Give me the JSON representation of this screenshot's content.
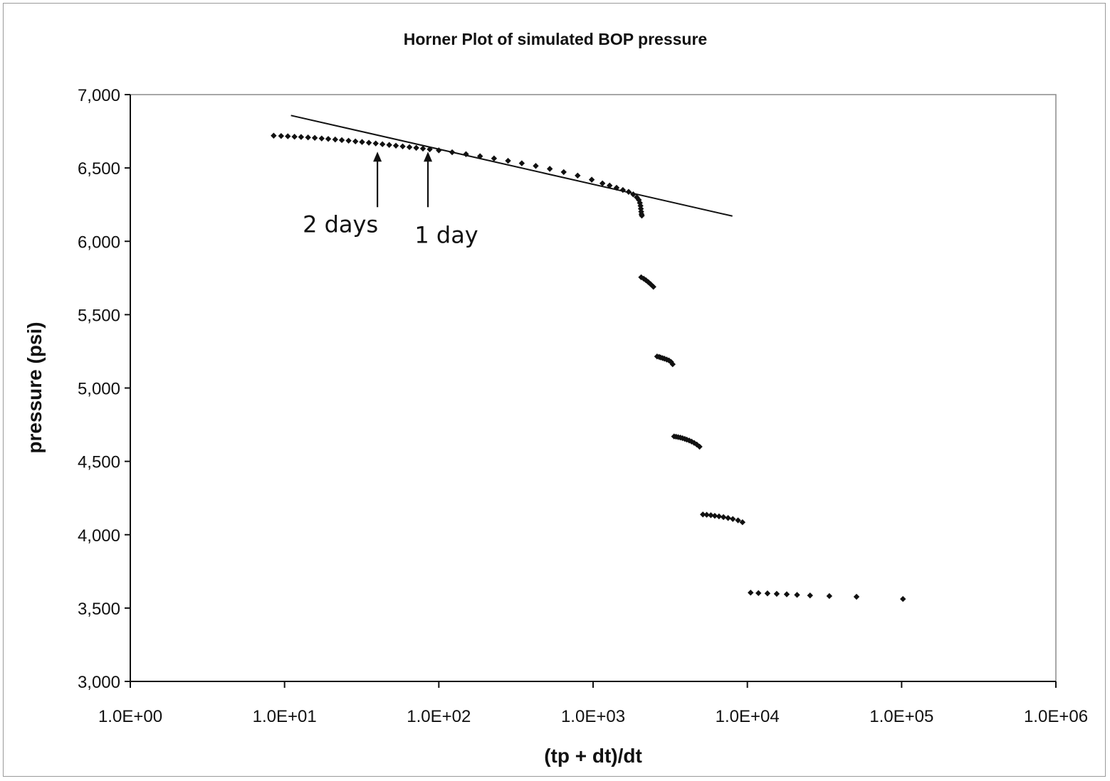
{
  "chart_data": {
    "type": "scatter",
    "title": "Horner Plot of simulated BOP pressure",
    "xlabel": "(tp + dt)/dt",
    "ylabel": "pressure (psi)",
    "xscale": "log",
    "xlim": [
      1,
      1000000
    ],
    "ylim": [
      3000,
      7000
    ],
    "grid": false,
    "legend": "none",
    "xticks": [
      "1.0E+00",
      "1.0E+01",
      "1.0E+02",
      "1.0E+03",
      "1.0E+04",
      "1.0E+05",
      "1.0E+06"
    ],
    "yticks": [
      "3,000",
      "3,500",
      "4,000",
      "4,500",
      "5,000",
      "5,500",
      "6,000",
      "6,500",
      "7,000"
    ],
    "marker_color": "#111111",
    "series": [
      {
        "marker": "diamond",
        "x": [
          8.5,
          9.5,
          10.5,
          11.6,
          12.8,
          14.2,
          15.7,
          17.4,
          19.2,
          21.3,
          23.5,
          26.0,
          28.8,
          31.8,
          35.2,
          39.0,
          43.1,
          47.7,
          52.7,
          58.3,
          64.5,
          71.4,
          78.9,
          87.3,
          100,
          122,
          150,
          185,
          228,
          281,
          345,
          425,
          524,
          645,
          794,
          980,
          1150,
          1280,
          1420,
          1560,
          1700,
          1820,
          1920,
          1980,
          2010,
          2030,
          2040,
          2050,
          2060,
          2070,
          2050,
          2130,
          2200,
          2280,
          2360,
          2460,
          2600,
          2680,
          2740,
          2820,
          2900,
          3000,
          3100,
          3200,
          3280,
          3350,
          3450,
          3560,
          3680,
          3800,
          3930,
          4050,
          4200,
          4350,
          4520,
          4700,
          4900,
          5150,
          5450,
          5800,
          6150,
          6550,
          7000,
          7500,
          8050,
          8700,
          9300,
          10500,
          11800,
          13500,
          15500,
          18000,
          21000,
          25500,
          34000,
          51000,
          102000
        ],
        "y": [
          6720,
          6718,
          6716,
          6713,
          6711,
          6708,
          6705,
          6701,
          6698,
          6694,
          6690,
          6686,
          6681,
          6677,
          6672,
          6667,
          6662,
          6657,
          6652,
          6647,
          6642,
          6637,
          6632,
          6627,
          6620,
          6607,
          6594,
          6580,
          6565,
          6549,
          6532,
          6514,
          6494,
          6472,
          6448,
          6420,
          6395,
          6380,
          6365,
          6350,
          6337,
          6320,
          6300,
          6282,
          6262,
          6242,
          6222,
          6202,
          6185,
          6175,
          5755,
          5745,
          5735,
          5722,
          5708,
          5690,
          5215,
          5212,
          5208,
          5204,
          5200,
          5194,
          5188,
          5178,
          5162,
          4670,
          4668,
          4665,
          4662,
          4658,
          4653,
          4648,
          4642,
          4635,
          4626,
          4615,
          4600,
          4138,
          4136,
          4133,
          4129,
          4125,
          4120,
          4114,
          4107,
          4098,
          4085,
          3605,
          3602,
          3600,
          3597,
          3594,
          3590,
          3586,
          3582,
          3577,
          3562
        ]
      }
    ],
    "trendline": {
      "x": [
        11,
        8000
      ],
      "y": [
        6858,
        6172
      ]
    },
    "annotations": [
      {
        "text": "2 days",
        "x": 40,
        "y": 6640
      },
      {
        "text": "1 day",
        "x": 85,
        "y": 6640
      }
    ]
  }
}
